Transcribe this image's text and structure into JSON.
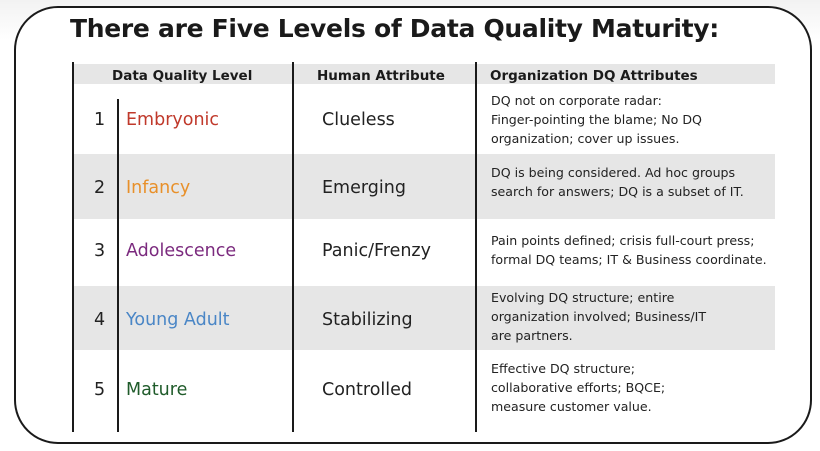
{
  "title": "There are Five Levels of Data Quality Maturity:",
  "headers": {
    "level": "Data Quality Level",
    "human": "Human Attribute",
    "org": "Organization DQ Attributes"
  },
  "rows": [
    {
      "num": "1",
      "level": "Embryonic",
      "level_color": "#c0392b",
      "human": "Clueless",
      "org": [
        "DQ not on corporate radar:",
        "Finger-pointing the blame; No DQ",
        "organization; cover up issues."
      ]
    },
    {
      "num": "2",
      "level": "Infancy",
      "level_color": "#e8902a",
      "human": "Emerging",
      "org": [
        "DQ is being considered. Ad hoc groups",
        "search for answers; DQ is a subset of IT."
      ]
    },
    {
      "num": "3",
      "level": "Adolescence",
      "level_color": "#7b2a7e",
      "human": "Panic/Frenzy",
      "org": [
        "Pain points defined; crisis full-court press;",
        "formal DQ teams; IT & Business coordinate."
      ]
    },
    {
      "num": "4",
      "level": "Young Adult",
      "level_color": "#4a86c6",
      "human": "Stabilizing",
      "org": [
        "Evolving DQ structure; entire",
        "organization involved; Business/IT",
        "are partners."
      ]
    },
    {
      "num": "5",
      "level": "Mature",
      "level_color": "#1f5b2a",
      "human": "Controlled",
      "org": [
        "Effective DQ structure;",
        "collaborative efforts; BQCE;",
        "measure customer value."
      ]
    }
  ]
}
